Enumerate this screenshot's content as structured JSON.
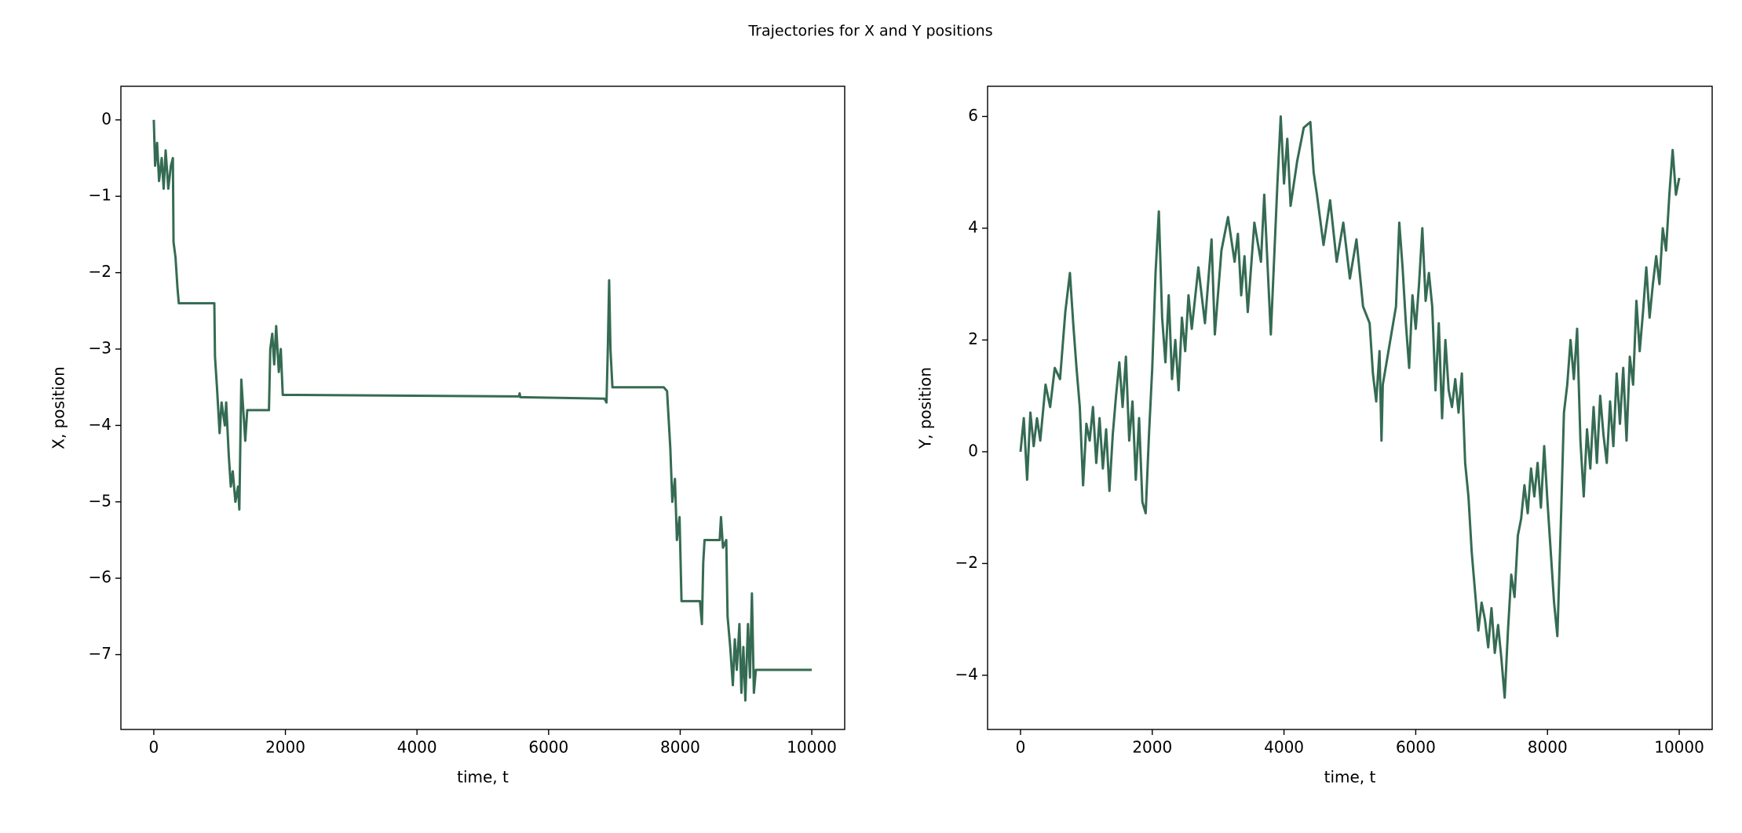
{
  "title": "Trajectories for X and Y positions",
  "chart_data": [
    {
      "type": "line",
      "xlabel": "time, t",
      "ylabel": "X, position",
      "color": "#356b53",
      "grid": false,
      "xlim": [
        -500,
        10500
      ],
      "xticks": [
        0,
        2000,
        4000,
        6000,
        8000,
        10000
      ],
      "ylim": [
        -7.98,
        0.44
      ],
      "yticks": [
        0,
        {
          "value": -1,
          "label": "−1"
        },
        {
          "value": -2,
          "label": "−2"
        },
        {
          "value": -3,
          "label": "−3"
        },
        {
          "value": -4,
          "label": "−4"
        },
        {
          "value": -5,
          "label": "−5"
        },
        {
          "value": -6,
          "label": "−6"
        },
        {
          "value": -7,
          "label": "−7"
        }
      ],
      "x": [
        0,
        20,
        50,
        80,
        120,
        150,
        180,
        220,
        260,
        290,
        300,
        330,
        360,
        380,
        920,
        930,
        960,
        1000,
        1030,
        1080,
        1100,
        1140,
        1170,
        1200,
        1240,
        1280,
        1300,
        1330,
        1360,
        1390,
        1420,
        1750,
        1770,
        1800,
        1830,
        1860,
        1900,
        1930,
        1960,
        2000,
        5550,
        5560,
        5570,
        6850,
        6880,
        6900,
        6920,
        6940,
        6970,
        7750,
        7800,
        7850,
        7880,
        7920,
        7950,
        7990,
        8020,
        8300,
        8330,
        8350,
        8370,
        8600,
        8620,
        8650,
        8700,
        8720,
        8760,
        8800,
        8830,
        8860,
        8900,
        8930,
        8960,
        8990,
        9030,
        9060,
        9090,
        9120,
        9150,
        9200,
        10000
      ],
      "values": [
        0,
        -0.6,
        -0.3,
        -0.8,
        -0.5,
        -0.9,
        -0.4,
        -0.9,
        -0.6,
        -0.5,
        -1.6,
        -1.8,
        -2.2,
        -2.4,
        -2.4,
        -3.1,
        -3.5,
        -4.1,
        -3.7,
        -4.0,
        -3.7,
        -4.4,
        -4.8,
        -4.6,
        -5.0,
        -4.8,
        -5.1,
        -3.4,
        -3.8,
        -4.2,
        -3.8,
        -3.8,
        -3.0,
        -2.8,
        -3.2,
        -2.7,
        -3.3,
        -3.0,
        -3.6,
        -3.6,
        -3.62,
        -3.58,
        -3.63,
        -3.65,
        -3.7,
        -3.0,
        -2.1,
        -3.0,
        -3.5,
        -3.5,
        -3.55,
        -4.3,
        -5.0,
        -4.7,
        -5.5,
        -5.2,
        -6.3,
        -6.3,
        -6.6,
        -5.8,
        -5.5,
        -5.5,
        -5.2,
        -5.6,
        -5.5,
        -6.5,
        -6.9,
        -7.4,
        -6.8,
        -7.2,
        -6.6,
        -7.5,
        -6.9,
        -7.6,
        -6.6,
        -7.3,
        -6.2,
        -7.5,
        -7.2,
        -7.2,
        -7.2
      ]
    },
    {
      "type": "line",
      "xlabel": "time, t",
      "ylabel": "Y, position",
      "color": "#356b53",
      "grid": false,
      "xlim": [
        -500,
        10500
      ],
      "xticks": [
        0,
        2000,
        4000,
        6000,
        8000,
        10000
      ],
      "ylim": [
        -4.97,
        6.54
      ],
      "yticks": [
        {
          "value": -4,
          "label": "−4"
        },
        {
          "value": -2,
          "label": "−2"
        },
        0,
        2,
        4,
        6
      ],
      "x": [
        0,
        50,
        100,
        150,
        200,
        250,
        300,
        380,
        450,
        520,
        600,
        680,
        750,
        800,
        850,
        900,
        950,
        1000,
        1050,
        1100,
        1150,
        1200,
        1250,
        1300,
        1350,
        1400,
        1450,
        1500,
        1550,
        1600,
        1650,
        1700,
        1750,
        1800,
        1850,
        1900,
        1950,
        2000,
        2050,
        2100,
        2150,
        2200,
        2250,
        2300,
        2350,
        2400,
        2450,
        2500,
        2550,
        2600,
        2700,
        2800,
        2900,
        2950,
        3050,
        3150,
        3250,
        3300,
        3350,
        3400,
        3450,
        3550,
        3650,
        3700,
        3800,
        3900,
        3950,
        4000,
        4050,
        4100,
        4200,
        4300,
        4400,
        4450,
        4500,
        4600,
        4700,
        4800,
        4900,
        5000,
        5100,
        5150,
        5200,
        5300,
        5350,
        5400,
        5450,
        5480,
        5500,
        5600,
        5700,
        5750,
        5800,
        5850,
        5900,
        5950,
        6000,
        6050,
        6100,
        6150,
        6200,
        6250,
        6300,
        6350,
        6400,
        6450,
        6500,
        6550,
        6600,
        6650,
        6700,
        6750,
        6800,
        6850,
        6900,
        6950,
        7000,
        7050,
        7100,
        7150,
        7200,
        7250,
        7300,
        7350,
        7400,
        7450,
        7500,
        7550,
        7600,
        7650,
        7700,
        7750,
        7800,
        7850,
        7900,
        7950,
        8000,
        8050,
        8100,
        8150,
        8200,
        8250,
        8300,
        8350,
        8400,
        8450,
        8500,
        8550,
        8600,
        8650,
        8700,
        8750,
        8800,
        8850,
        8900,
        8950,
        9000,
        9050,
        9100,
        9150,
        9200,
        9250,
        9300,
        9350,
        9400,
        9450,
        9500,
        9550,
        9600,
        9650,
        9700,
        9750,
        9800,
        9850,
        9900,
        9950,
        10000
      ],
      "values": [
        0,
        0.6,
        -0.5,
        0.7,
        0.1,
        0.6,
        0.2,
        1.2,
        0.8,
        1.5,
        1.3,
        2.5,
        3.2,
        2.3,
        1.5,
        0.8,
        -0.6,
        0.5,
        0.2,
        0.8,
        -0.2,
        0.6,
        -0.3,
        0.4,
        -0.7,
        0.3,
        1.0,
        1.6,
        0.8,
        1.7,
        0.2,
        0.9,
        -0.5,
        0.6,
        -0.9,
        -1.1,
        0.3,
        1.5,
        3.2,
        4.3,
        2.4,
        1.6,
        2.8,
        1.3,
        2.0,
        1.1,
        2.4,
        1.8,
        2.8,
        2.2,
        3.3,
        2.3,
        3.8,
        2.1,
        3.6,
        4.2,
        3.4,
        3.9,
        2.8,
        3.5,
        2.5,
        4.1,
        3.4,
        4.6,
        2.1,
        4.8,
        6.0,
        4.8,
        5.6,
        4.4,
        5.2,
        5.8,
        5.9,
        5.0,
        4.6,
        3.7,
        4.5,
        3.4,
        4.1,
        3.1,
        3.8,
        3.2,
        2.6,
        2.3,
        1.4,
        0.9,
        1.8,
        0.2,
        1.2,
        1.9,
        2.6,
        4.1,
        3.3,
        2.3,
        1.5,
        2.8,
        2.2,
        3.0,
        4.0,
        2.7,
        3.2,
        2.6,
        1.1,
        2.3,
        0.6,
        2.0,
        1.1,
        0.8,
        1.3,
        0.7,
        1.4,
        -0.2,
        -0.8,
        -1.8,
        -2.5,
        -3.2,
        -2.7,
        -3.0,
        -3.5,
        -2.8,
        -3.6,
        -3.1,
        -3.7,
        -4.4,
        -3.2,
        -2.2,
        -2.6,
        -1.5,
        -1.2,
        -0.6,
        -1.1,
        -0.3,
        -0.8,
        -0.2,
        -1.0,
        0.1,
        -0.9,
        -1.8,
        -2.7,
        -3.3,
        -1.4,
        0.7,
        1.2,
        2.0,
        1.3,
        2.2,
        0.2,
        -0.8,
        0.4,
        -0.3,
        0.8,
        -0.2,
        1.0,
        0.3,
        -0.2,
        0.9,
        0.1,
        1.4,
        0.5,
        1.5,
        0.2,
        1.7,
        1.2,
        2.7,
        1.8,
        2.5,
        3.3,
        2.4,
        3.0,
        3.5,
        3.0,
        4.0,
        3.6,
        4.6,
        5.4,
        4.6,
        4.9
      ]
    }
  ]
}
